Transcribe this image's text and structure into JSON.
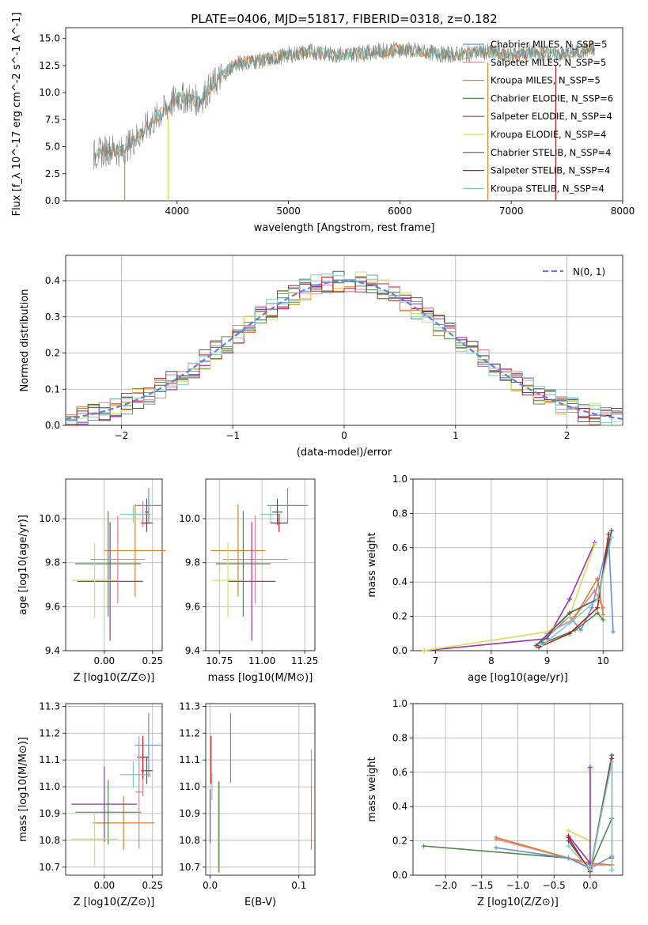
{
  "figure": {
    "title": "PLATE=0406, MJD=51817, FIBERID=0318, z=0.182"
  },
  "colors": {
    "Chabrier MILES": "#6b8fd6",
    "Salpeter MILES": "#e87f8c",
    "Kroupa MILES": "#d9822b",
    "Chabrier ELODIE": "#4e8a4e",
    "Salpeter ELODIE": "#9b2fae",
    "Kroupa ELODIE": "#d4e157",
    "Chabrier STELIB": "#555555",
    "Salpeter STELIB": "#b71c1c",
    "Kroupa STELIB": "#80cbc4",
    "data": "#808080",
    "normal": "#5b84d6"
  },
  "chart_data": [
    {
      "id": "spectrum",
      "type": "line",
      "xlabel": "wavelength [Angstrom, rest frame]",
      "ylabel": "Flux [f_λ 10^-17 erg cm^-2 s^-1 A^-1]",
      "xlim": [
        3000,
        8000
      ],
      "ylim": [
        0,
        16
      ],
      "xticks": [
        "4000",
        "5000",
        "6000",
        "7000",
        "8000"
      ],
      "yticks": [
        "0.0",
        "2.5",
        "5.0",
        "7.5",
        "10.0",
        "12.5",
        "15.0"
      ],
      "grid": false,
      "legend_position": "top-right",
      "legend": [
        {
          "label": "Chabrier MILES, N_SSP=5",
          "color_key": "Chabrier MILES"
        },
        {
          "label": "Salpeter MILES, N_SSP=5",
          "color_key": "Salpeter MILES"
        },
        {
          "label": "Kroupa MILES, N_SSP=5",
          "color_key": "Kroupa MILES"
        },
        {
          "label": "Chabrier ELODIE, N_SSP=6",
          "color_key": "Chabrier ELODIE"
        },
        {
          "label": "Salpeter ELODIE, N_SSP=4",
          "color_key": "Salpeter ELODIE"
        },
        {
          "label": "Kroupa ELODIE, N_SSP=4",
          "color_key": "Kroupa ELODIE"
        },
        {
          "label": "Chabrier STELIB, N_SSP=4",
          "color_key": "Chabrier STELIB"
        },
        {
          "label": "Salpeter STELIB, N_SSP=4",
          "color_key": "Salpeter STELIB"
        },
        {
          "label": "Kroupa STELIB, N_SSP=4",
          "color_key": "Kroupa STELIB"
        }
      ],
      "continuum": {
        "x": [
          3250,
          3400,
          3500,
          3600,
          3700,
          3800,
          3900,
          4000,
          4100,
          4200,
          4300,
          4400,
          4500,
          4600,
          4800,
          5000,
          5200,
          5400,
          5600,
          5800,
          6000,
          6200,
          6400,
          6600,
          6800,
          7000,
          7200,
          7400,
          7600,
          7750
        ],
        "y": [
          4.2,
          4.8,
          4.5,
          5.5,
          6.5,
          7.5,
          8.5,
          9.5,
          9.5,
          9.2,
          10.5,
          11.5,
          12.5,
          12.8,
          13.0,
          13.5,
          13.8,
          13.5,
          13.6,
          13.8,
          14.0,
          13.8,
          13.5,
          13.6,
          13.8,
          13.5,
          13.7,
          13.5,
          13.8,
          14.0
        ]
      },
      "model_drops": [
        {
          "x": 3530,
          "color_key": "Kroupa MILES"
        },
        {
          "x": 3920,
          "color_key": "Kroupa ELODIE"
        },
        {
          "x": 6790,
          "color_key": "Kroupa MILES"
        },
        {
          "x": 7400,
          "color_key": "Salpeter STELIB"
        }
      ]
    },
    {
      "id": "residuals",
      "type": "line",
      "xlabel": "(data-model)/error",
      "ylabel": "Normed distribution",
      "xlim": [
        -2.5,
        2.5
      ],
      "ylim": [
        0,
        0.47
      ],
      "xticks": [
        "−2",
        "−1",
        "0",
        "1",
        "2"
      ],
      "yticks": [
        "0.0",
        "0.1",
        "0.2",
        "0.3",
        "0.4"
      ],
      "grid": true,
      "legend_position": "top-right",
      "legend_label": "N(0, 1)",
      "bin_width": 0.1
    },
    {
      "id": "age-vs-Z",
      "type": "scatter",
      "xlabel": "Z [log10(Z/Z⊙)]",
      "ylabel": "age [log10(age/yr)]",
      "xlim": [
        -0.2,
        0.3
      ],
      "ylim": [
        9.4,
        10.18
      ],
      "xticks": [
        "0.00",
        "0.25"
      ],
      "yticks": [
        "9.4",
        "9.6",
        "9.8",
        "10.0"
      ],
      "grid": true,
      "points": [
        {
          "series": "Chabrier MILES",
          "x": 0.23,
          "y": 10.06,
          "xerr": 0.07,
          "yerr": 0.08
        },
        {
          "series": "Salpeter MILES",
          "x": 0.2,
          "y": 10.02,
          "xerr": 0.04,
          "yerr": 0.06
        },
        {
          "series": "Kroupa MILES",
          "x": 0.16,
          "y": 9.855,
          "xerr": 0.16,
          "yerr": 0.21
        },
        {
          "series": "Chabrier ELODIE",
          "x": 0.02,
          "y": 9.795,
          "xerr": 0.17,
          "yerr": 0.24
        },
        {
          "series": "Salpeter ELODIE",
          "x": 0.03,
          "y": 9.715,
          "xerr": 0.17,
          "yerr": 0.27
        },
        {
          "series": "Kroupa ELODIE",
          "x": -0.05,
          "y": 9.72,
          "xerr": 0.12,
          "yerr": 0.17
        },
        {
          "series": "Chabrier STELIB",
          "x": 0.22,
          "y": 10.03,
          "xerr": 0.01,
          "yerr": 0.06
        },
        {
          "series": "Salpeter STELIB",
          "x": 0.22,
          "y": 9.98,
          "xerr": 0.03,
          "yerr": 0.04
        },
        {
          "series": "Kroupa STELIB",
          "x": 0.15,
          "y": 10.02,
          "xerr": 0.07,
          "yerr": 0.04
        },
        {
          "series": "Salpeter MILES",
          "x": 0.07,
          "y": 9.815,
          "xerr": 0.14,
          "yerr": 0.2
        }
      ]
    },
    {
      "id": "age-vs-mass",
      "type": "scatter",
      "xlabel": "mass [log10(M/M⊙)]",
      "ylabel": "",
      "xlim": [
        10.67,
        11.31
      ],
      "ylim": [
        9.4,
        10.18
      ],
      "xticks": [
        "10.75",
        "11.00",
        "11.25"
      ],
      "yticks": [
        "9.4",
        "9.6",
        "9.8",
        "10.0"
      ],
      "grid": true,
      "points": [
        {
          "series": "Chabrier MILES",
          "x": 11.15,
          "y": 10.06,
          "xerr": 0.12,
          "yerr": 0.08
        },
        {
          "series": "Kroupa STELIB",
          "x": 11.05,
          "y": 10.02,
          "xerr": 0.06,
          "yerr": 0.04
        },
        {
          "series": "Salpeter STELIB",
          "x": 11.1,
          "y": 9.98,
          "xerr": 0.05,
          "yerr": 0.04
        },
        {
          "series": "Kroupa MILES",
          "x": 10.86,
          "y": 9.855,
          "xerr": 0.16,
          "yerr": 0.21
        },
        {
          "series": "Salpeter MILES",
          "x": 10.96,
          "y": 9.815,
          "xerr": 0.19,
          "yerr": 0.2
        },
        {
          "series": "Chabrier ELODIE",
          "x": 10.89,
          "y": 9.795,
          "xerr": 0.16,
          "yerr": 0.24
        },
        {
          "series": "Salpeter ELODIE",
          "x": 10.94,
          "y": 9.715,
          "xerr": 0.14,
          "yerr": 0.27
        },
        {
          "series": "Kroupa ELODIE",
          "x": 10.8,
          "y": 9.72,
          "xerr": 0.09,
          "yerr": 0.17
        },
        {
          "series": "Chabrier STELIB",
          "x": 11.09,
          "y": 10.03,
          "xerr": 0.03,
          "yerr": 0.06
        }
      ]
    },
    {
      "id": "weight-vs-age",
      "type": "line",
      "xlabel": "age [log10(age/yr)]",
      "ylabel": "mass weight",
      "xlim": [
        6.6,
        10.35
      ],
      "ylim": [
        0,
        1.0
      ],
      "xticks": [
        "7",
        "8",
        "9",
        "10"
      ],
      "yticks": [
        "0.0",
        "0.2",
        "0.4",
        "0.6",
        "0.8",
        "1.0"
      ],
      "grid": true,
      "series": [
        {
          "name": "Chabrier MILES",
          "x": [
            8.9,
            9.4,
            9.6,
            9.8,
            10.1,
            10.18
          ],
          "y": [
            0.05,
            0.2,
            0.12,
            0.25,
            0.65,
            0.11
          ]
        },
        {
          "name": "Salpeter MILES",
          "x": [
            9.0,
            9.45,
            9.85,
            10.0
          ],
          "y": [
            0.1,
            0.18,
            0.35,
            0.25
          ]
        },
        {
          "name": "Kroupa MILES",
          "x": [
            9.5,
            9.9,
            10.0
          ],
          "y": [
            0.2,
            0.42,
            0.21
          ]
        },
        {
          "name": "Chabrier ELODIE",
          "x": [
            8.9,
            9.5,
            9.9,
            10.0
          ],
          "y": [
            0.04,
            0.12,
            0.22,
            0.18
          ]
        },
        {
          "name": "Salpeter ELODIE",
          "x": [
            6.8,
            9.0,
            9.4,
            9.85
          ],
          "y": [
            0.0,
            0.07,
            0.3,
            0.63
          ]
        },
        {
          "name": "Kroupa ELODIE",
          "x": [
            6.8,
            9.0,
            9.4,
            9.85
          ],
          "y": [
            0.0,
            0.11,
            0.2,
            0.62
          ]
        },
        {
          "name": "Chabrier STELIB",
          "x": [
            8.8,
            9.4,
            9.9,
            10.15
          ],
          "y": [
            0.03,
            0.22,
            0.3,
            0.7
          ]
        },
        {
          "name": "Salpeter STELIB",
          "x": [
            8.85,
            9.4,
            9.9,
            10.1
          ],
          "y": [
            0.02,
            0.1,
            0.25,
            0.68
          ]
        },
        {
          "name": "Kroupa STELIB",
          "x": [
            8.9,
            9.4,
            9.9,
            10.15
          ],
          "y": [
            0.03,
            0.16,
            0.3,
            0.66
          ]
        }
      ]
    },
    {
      "id": "mass-vs-Z",
      "type": "scatter",
      "xlabel": "Z [log10(Z/Z⊙)]",
      "ylabel": "mass [log10(M/M⊙)]",
      "xlim": [
        -0.2,
        0.3
      ],
      "ylim": [
        10.67,
        11.31
      ],
      "xticks": [
        "0.00",
        "0.25"
      ],
      "yticks": [
        "10.7",
        "10.8",
        "10.9",
        "11.0",
        "11.1",
        "11.2",
        "11.3"
      ],
      "grid": true,
      "points": [
        {
          "series": "Chabrier MILES",
          "x": 0.23,
          "y": 11.155,
          "xerr": 0.07,
          "yerr": 0.12
        },
        {
          "series": "Salpeter MILES",
          "x": 0.2,
          "y": 11.045,
          "xerr": 0.04,
          "yerr": 0.08
        },
        {
          "series": "Kroupa MILES",
          "x": 0.1,
          "y": 10.865,
          "xerr": 0.16,
          "yerr": 0.1
        },
        {
          "series": "Chabrier ELODIE",
          "x": 0.02,
          "y": 10.905,
          "xerr": 0.17,
          "yerr": 0.12
        },
        {
          "series": "Salpeter ELODIE",
          "x": 0.0,
          "y": 10.935,
          "xerr": 0.17,
          "yerr": 0.14
        },
        {
          "series": "Kroupa ELODIE",
          "x": -0.05,
          "y": 10.805,
          "xerr": 0.12,
          "yerr": 0.1
        },
        {
          "series": "Chabrier STELIB",
          "x": 0.22,
          "y": 11.06,
          "xerr": 0.03,
          "yerr": 0.05
        },
        {
          "series": "Salpeter STELIB",
          "x": 0.2,
          "y": 11.11,
          "xerr": 0.03,
          "yerr": 0.08
        },
        {
          "series": "Kroupa STELIB",
          "x": 0.15,
          "y": 11.045,
          "xerr": 0.07,
          "yerr": 0.05
        },
        {
          "series": "Salpeter MILES",
          "x": 0.18,
          "y": 10.98,
          "xerr": 0.02,
          "yerr": 0.21
        }
      ]
    },
    {
      "id": "mass-vs-ebv",
      "type": "scatter",
      "xlabel": "E(B-V)",
      "ylabel": "",
      "xlim": [
        -0.005,
        0.118
      ],
      "ylim": [
        10.67,
        11.31
      ],
      "xticks": [
        "0.0",
        "0.1"
      ],
      "yticks": [
        "10.7",
        "10.8",
        "10.9",
        "11.0",
        "11.1",
        "11.2",
        "11.3"
      ],
      "grid": true,
      "points": [
        {
          "series": "Chabrier MILES",
          "x": 0.023,
          "y": 11.145,
          "xerr": 0,
          "yerr": 0.13
        },
        {
          "series": "Salpeter ELODIE",
          "x": 0.0,
          "y": 10.89,
          "xerr": 0,
          "yerr": 0.1
        },
        {
          "series": "Salpeter STELIB",
          "x": 0.001,
          "y": 11.1,
          "xerr": 0,
          "yerr": 0.09
        },
        {
          "series": "Kroupa STELIB",
          "x": 0.002,
          "y": 11.0,
          "xerr": 0,
          "yerr": 0.05
        },
        {
          "series": "Kroupa ELODIE",
          "x": 0.009,
          "y": 10.85,
          "xerr": 0,
          "yerr": 0.17
        },
        {
          "series": "Kroupa MILES",
          "x": 0.114,
          "y": 10.885,
          "xerr": 0,
          "yerr": 0.12
        },
        {
          "series": "Salpeter MILES",
          "x": 0.114,
          "y": 11.07,
          "xerr": 0,
          "yerr": 0.07
        },
        {
          "series": "Chabrier ELODIE",
          "x": 0.01,
          "y": 10.85,
          "xerr": 0,
          "yerr": 0.17
        }
      ]
    },
    {
      "id": "weight-vs-Z",
      "type": "line",
      "xlabel": "Z [log10(Z/Z⊙)]",
      "ylabel": "mass weight",
      "xlim": [
        -2.45,
        0.45
      ],
      "ylim": [
        0,
        1.0
      ],
      "xticks": [
        "−2.0",
        "−1.5",
        "−1.0",
        "−0.5",
        "0.0"
      ],
      "yticks": [
        "0.0",
        "0.2",
        "0.4",
        "0.6",
        "0.8",
        "1.0"
      ],
      "grid": true,
      "series": [
        {
          "name": "Chabrier ELODIE",
          "x": [
            -2.3,
            -0.3,
            0.0,
            0.3
          ],
          "y": [
            0.17,
            0.1,
            0.04,
            0.33
          ]
        },
        {
          "name": "Salpeter MILES",
          "x": [
            -1.3,
            -0.3,
            0.0,
            0.3
          ],
          "y": [
            0.21,
            0.1,
            0.06,
            0.06
          ]
        },
        {
          "name": "Kroupa MILES",
          "x": [
            -1.3,
            -0.3,
            0.0,
            0.3
          ],
          "y": [
            0.22,
            0.1,
            0.07,
            0.06
          ]
        },
        {
          "name": "Chabrier MILES",
          "x": [
            -1.3,
            -0.3,
            0.0,
            0.3
          ],
          "y": [
            0.16,
            0.1,
            0.04,
            0.11
          ]
        },
        {
          "name": "Kroupa ELODIE",
          "x": [
            -0.3,
            0.0,
            0.0
          ],
          "y": [
            0.26,
            0.2,
            0.62
          ]
        },
        {
          "name": "Salpeter ELODIE",
          "x": [
            -0.3,
            0.0,
            0.0
          ],
          "y": [
            0.23,
            0.07,
            0.63
          ]
        },
        {
          "name": "Chabrier STELIB",
          "x": [
            -0.3,
            0.0,
            0.3,
            0.3
          ],
          "y": [
            0.2,
            0.03,
            0.7,
            0.03
          ]
        },
        {
          "name": "Salpeter STELIB",
          "x": [
            -0.3,
            0.0,
            0.3,
            0.3
          ],
          "y": [
            0.22,
            0.02,
            0.68,
            0.1
          ]
        },
        {
          "name": "Kroupa STELIB",
          "x": [
            -0.3,
            0.0,
            0.3,
            0.3
          ],
          "y": [
            0.17,
            0.03,
            0.66,
            0.03
          ]
        }
      ]
    }
  ]
}
